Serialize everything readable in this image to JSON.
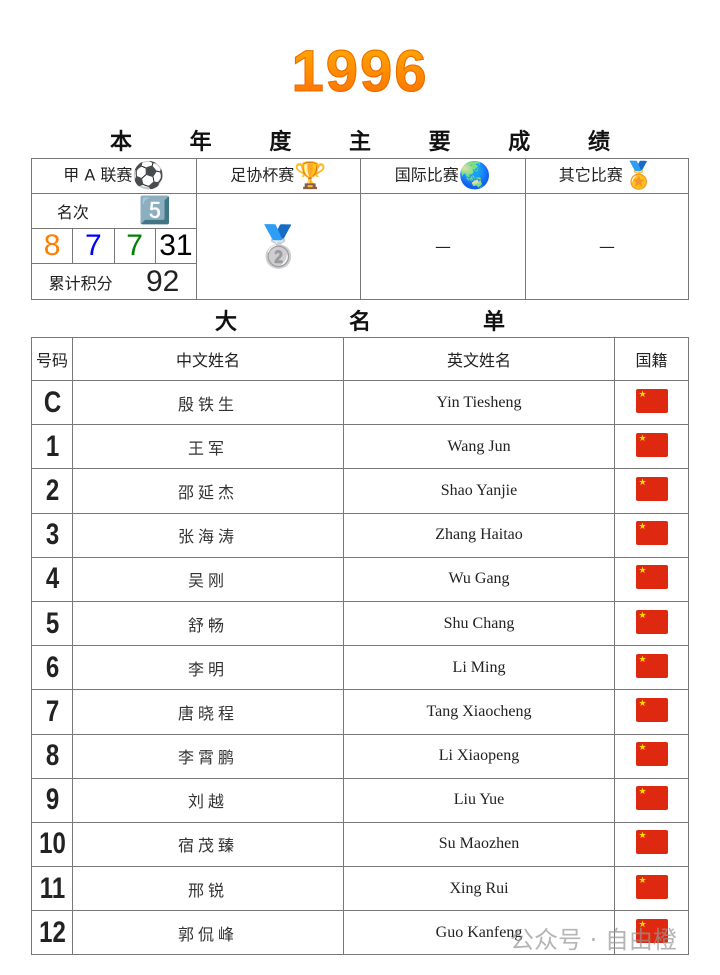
{
  "title": "1996",
  "section1": [
    "本",
    "年",
    "度",
    "主",
    "要",
    "成",
    "绩"
  ],
  "section2": [
    "大",
    "名",
    "单"
  ],
  "competitions": {
    "league": {
      "label": "甲 A 联赛",
      "icon": "soccer-ball-icon",
      "emoji": "⚽",
      "rank_label": "名次",
      "rank_emoji": "5️⃣",
      "record": [
        "8",
        "7",
        "7",
        "31"
      ],
      "record_colors": [
        "#ff7f00",
        "#0000ff",
        "#008000",
        "#000000"
      ],
      "points_label": "累计积分",
      "points": "92"
    },
    "cup": {
      "label": "足协杯赛",
      "emoji": "🏆",
      "result_emoji": "🥈"
    },
    "international": {
      "label": "国际比赛",
      "emoji": "🌏",
      "result": "—"
    },
    "other": {
      "label": "其它比赛",
      "emoji": "🏅",
      "result": "—"
    }
  },
  "roster": {
    "headers": [
      "号码",
      "中文姓名",
      "英文姓名",
      "国籍"
    ],
    "rows": [
      [
        "C",
        "殷铁生",
        "Yin Tiesheng"
      ],
      [
        "1",
        "王军",
        "Wang Jun"
      ],
      [
        "2",
        "邵延杰",
        "Shao Yanjie"
      ],
      [
        "3",
        "张海涛",
        "Zhang Haitao"
      ],
      [
        "4",
        "吴刚",
        "Wu Gang"
      ],
      [
        "5",
        "舒畅",
        "Shu Chang"
      ],
      [
        "6",
        "李明",
        "Li Ming"
      ],
      [
        "7",
        "唐晓程",
        "Tang Xiaocheng"
      ],
      [
        "8",
        "李霄鹏",
        "Li Xiaopeng"
      ],
      [
        "9",
        "刘越",
        "Liu Yue"
      ],
      [
        "10",
        "宿茂臻",
        "Su Maozhen"
      ],
      [
        "11",
        "邢锐",
        "Xing Rui"
      ],
      [
        "12",
        "郭侃峰",
        "Guo Kanfeng"
      ]
    ]
  },
  "watermark": "公众号 · 自由橙"
}
